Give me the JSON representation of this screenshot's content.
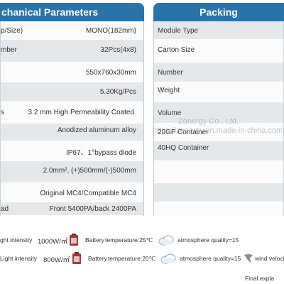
{
  "left_panel": {
    "header": "chanical Parameters",
    "rows": [
      {
        "label": "p/Size)",
        "value": "MONO(182mm)"
      },
      {
        "label": "mber",
        "value": "32Pcs(4x8)"
      },
      {
        "label": "",
        "value": "550x760x30mm"
      },
      {
        "label": "",
        "value": "5.30Kg/Pcs"
      },
      {
        "label": "s",
        "value": "3.2 mm High Permeability Coated"
      },
      {
        "label": "",
        "value": "Anodized aluminum alloy"
      },
      {
        "label": "",
        "value": "IP67、1°bypass diode"
      },
      {
        "label": "",
        "value": "2.0mm², (+)500mm/(-)500mm"
      },
      {
        "label": "",
        "value": "Original MC4/Compatible MC4"
      },
      {
        "label": "ad",
        "value": "Front 5400PA/back 2400PA"
      }
    ]
  },
  "right_panel": {
    "header": "Packing",
    "rows": [
      {
        "label": "Module Type"
      },
      {
        "label": "Carton Size"
      },
      {
        "label": "Number"
      },
      {
        "label": "Weight"
      },
      {
        "label": "Volume"
      },
      {
        "label": "20GP Container"
      },
      {
        "label": "40HQ Container"
      },
      {
        "label": ""
      },
      {
        "label": ""
      },
      {
        "label": ""
      }
    ]
  },
  "watermark": {
    "line1": "Zonergy Co., Ltd.",
    "line2": "https://zonergy.en.made-in-china.com"
  },
  "conditions": [
    {
      "light_text": "ght intensity",
      "light_value": "1000W/㎡",
      "battery_text": "Battery",
      "battery_value": "temperature:25℃",
      "atmosphere": "atmosphere quality=15"
    },
    {
      "light_text": "Light intensity",
      "light_value": "800W/㎡",
      "battery_text": "Battery",
      "battery_value": "temperature:20℃",
      "atmosphere": "atmosphere quality=15",
      "wind": "wind velocit"
    }
  ],
  "footer": {
    "note": "Final expla"
  },
  "colors": {
    "header": "#2a73a9",
    "row_grey": "#e5e8eb",
    "row_white": "#fbfbfb"
  }
}
